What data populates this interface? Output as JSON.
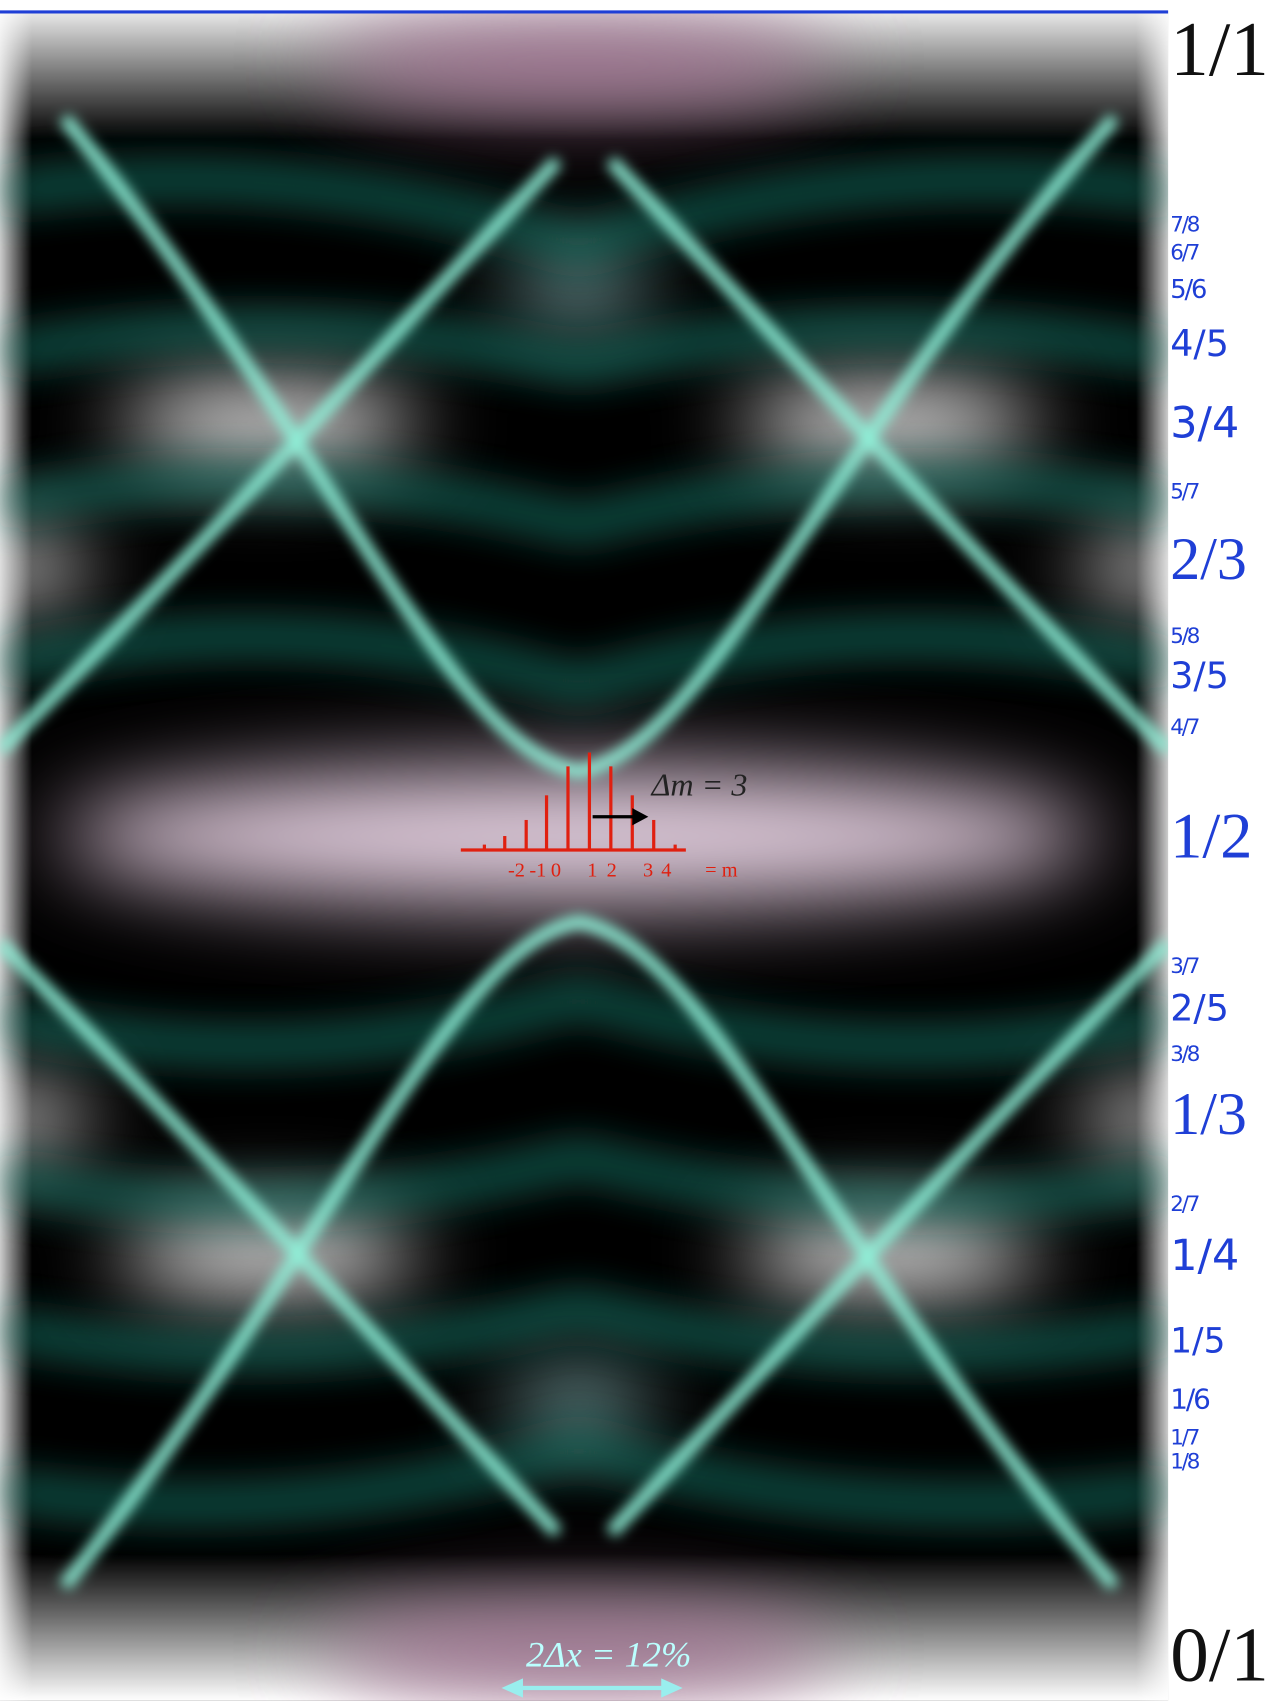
{
  "fractions": [
    "1/1",
    "7/8",
    "6/7",
    "5/6",
    "4/5",
    "3/4",
    "5/7",
    "2/3",
    "5/8",
    "3/5",
    "4/7",
    "1/2",
    "3/7",
    "2/5",
    "3/8",
    "1/3",
    "2/7",
    "1/4",
    "1/5",
    "1/6",
    "1/7",
    "1/8",
    "0/1"
  ],
  "inset": {
    "delta_m": "Δm = 3",
    "m_labels": [
      "-2",
      "-1",
      "0",
      "1",
      "2",
      "3",
      "4"
    ],
    "m_symbol": "= m"
  },
  "width_label": "2Δx = 12%"
}
